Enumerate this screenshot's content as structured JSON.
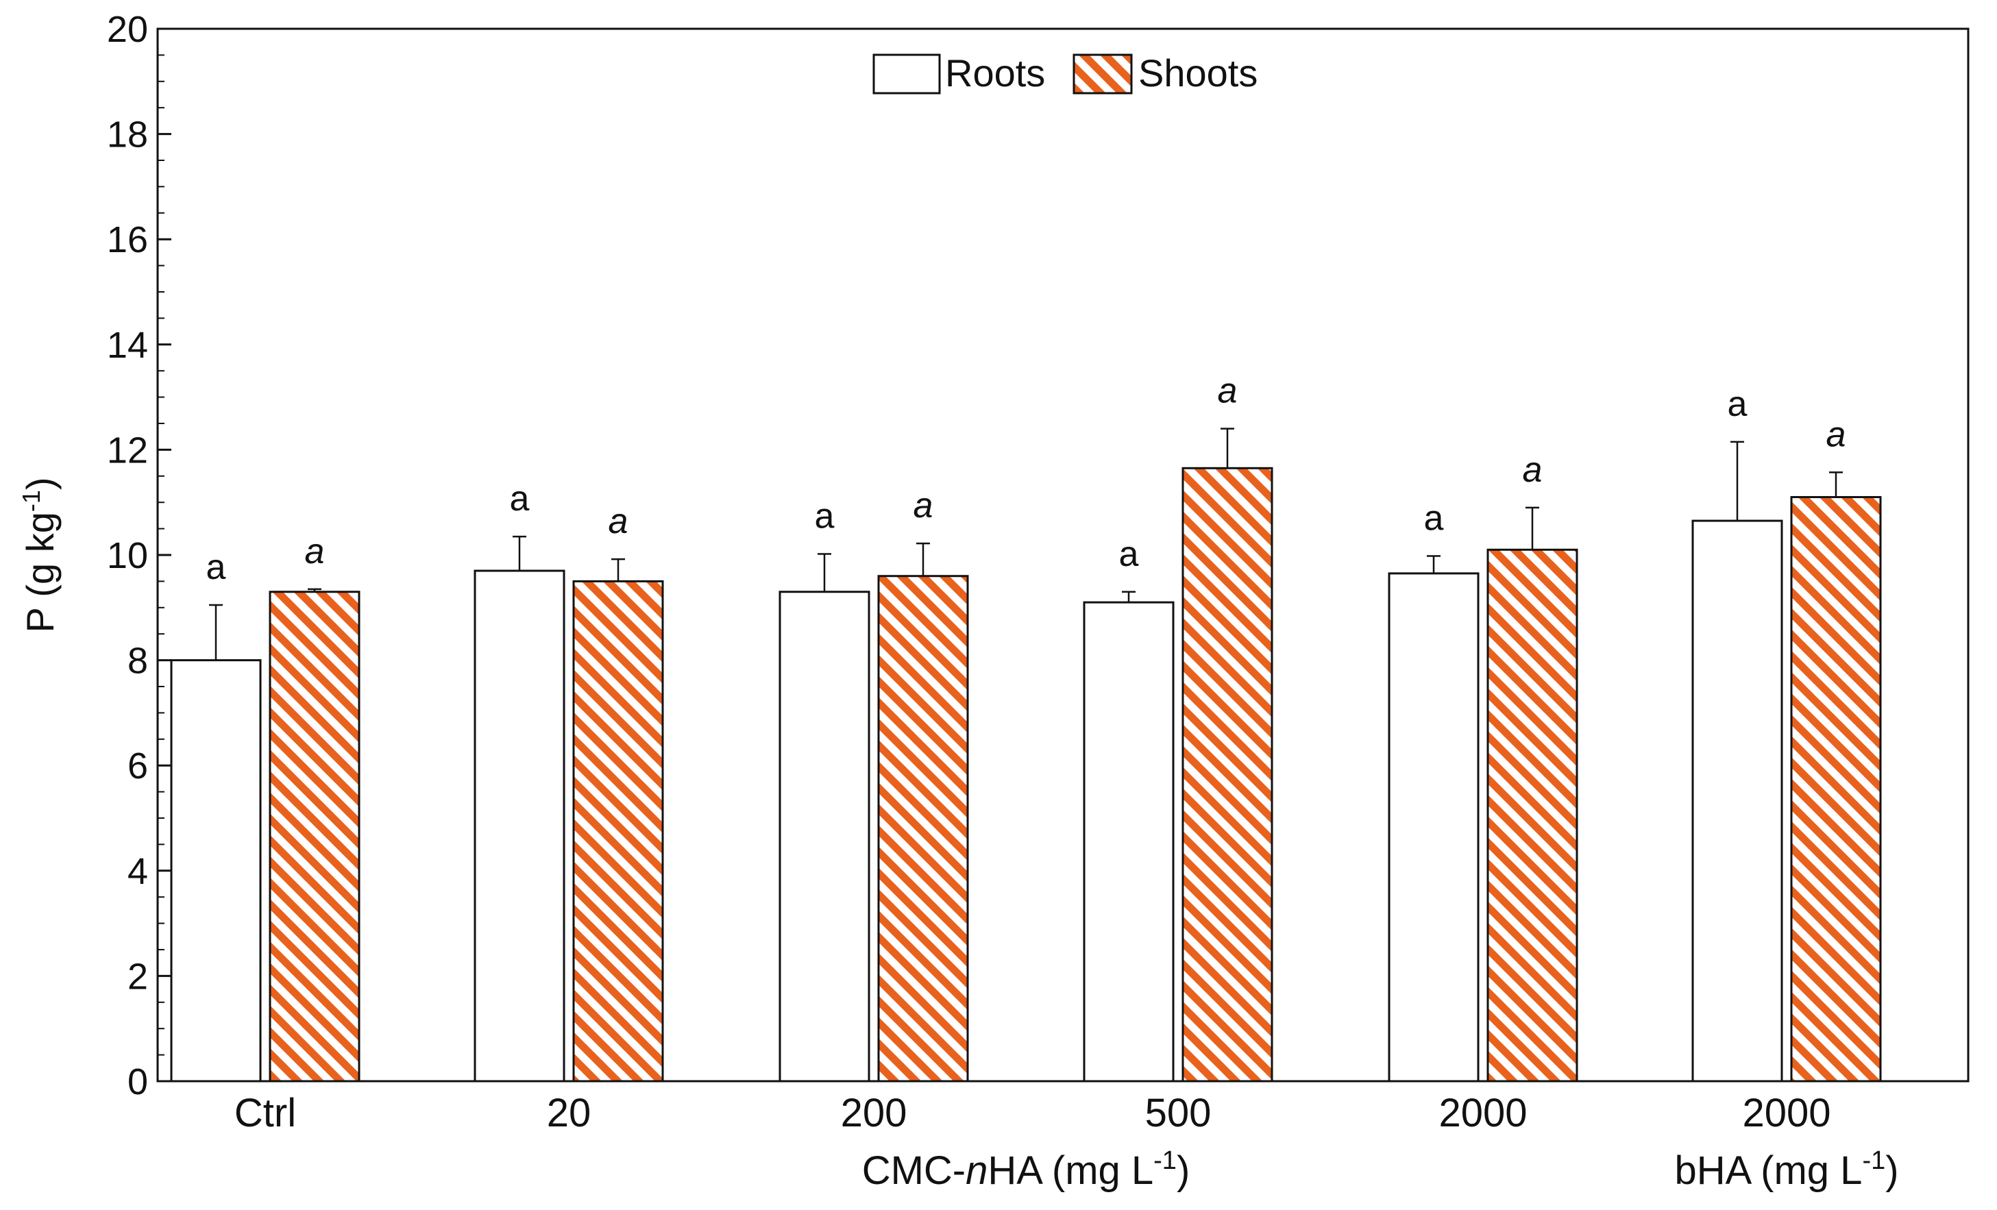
{
  "chart_data": {
    "type": "bar",
    "title": "",
    "ylabel": "P (g kg",
    "ylabel_sup": "-1",
    "ylabel_close": ")",
    "ylim": [
      0,
      20
    ],
    "y_major_ticks": [
      0,
      2,
      4,
      6,
      8,
      10,
      12,
      14,
      16,
      18,
      20
    ],
    "y_minor_step": 0.5,
    "grid": false,
    "categories": [
      "Ctrl",
      "20",
      "200",
      "500",
      "2000",
      "2000"
    ],
    "group_labels": [
      {
        "text": "CMC-",
        "text_italic": "n",
        "text_after": "HA (mg L",
        "sup": "-1",
        "close": ")",
        "span": [
          1,
          4
        ]
      },
      {
        "text": "bHA (mg L",
        "sup": "-1",
        "close": ")",
        "span": [
          5,
          5
        ]
      }
    ],
    "legend": {
      "placement": "top-center",
      "entries": [
        "Roots",
        "Shoots"
      ]
    },
    "colors": {
      "roots_fill": "#ffffff",
      "shoots_stripe": "#e8621d",
      "stroke": "#111111"
    },
    "series": [
      {
        "name": "Roots",
        "pattern": "solid-white",
        "values": [
          8.0,
          9.7,
          9.3,
          9.1,
          9.65,
          10.65
        ],
        "errors": [
          1.05,
          0.65,
          0.72,
          0.2,
          0.33,
          1.5
        ],
        "letters": [
          "a",
          "a",
          "a",
          "a",
          "a",
          "a"
        ],
        "letters_italic": false
      },
      {
        "name": "Shoots",
        "pattern": "orange-hatch",
        "values": [
          9.3,
          9.5,
          9.6,
          11.65,
          10.1,
          11.1
        ],
        "errors": [
          0.05,
          0.42,
          0.62,
          0.75,
          0.8,
          0.47
        ],
        "letters": [
          "a",
          "a",
          "a",
          "a",
          "a",
          "a"
        ],
        "letters_italic": true
      }
    ]
  }
}
